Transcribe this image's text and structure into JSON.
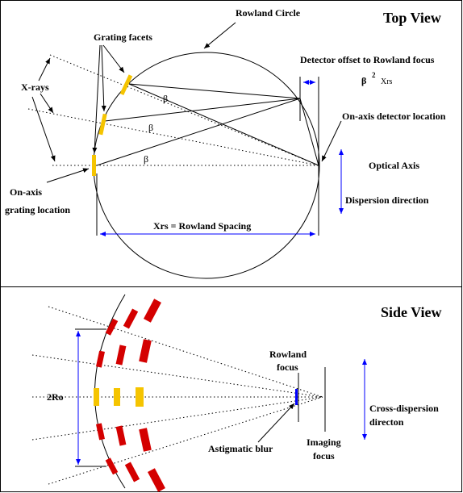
{
  "top_view": {
    "title": "Top View",
    "rowland_circle": "Rowland Circle",
    "grating_facets": "Grating facets",
    "x_rays": "X-rays",
    "detector_offset": "Detector offset to Rowland focus",
    "offset_formula": [
      "β",
      "2",
      "Xrs"
    ],
    "on_axis_detector": "On-axis detector location",
    "optical_axis": "Optical Axis",
    "dispersion_direction": "Dispersion direction",
    "on_axis_grating": [
      "On-axis",
      "grating location"
    ],
    "rowland_spacing": "Xrs = Rowland Spacing",
    "angles": [
      "β",
      "β",
      "β"
    ]
  },
  "side_view": {
    "title": "Side View",
    "radius": "2Ro",
    "rowland_focus": [
      "Rowland",
      "focus"
    ],
    "astigmatic_blur": "Astigmatic blur",
    "imaging_focus": [
      "Imaging",
      "focus"
    ],
    "cross_dispersion": [
      "Cross-dispersion",
      "directon"
    ]
  }
}
